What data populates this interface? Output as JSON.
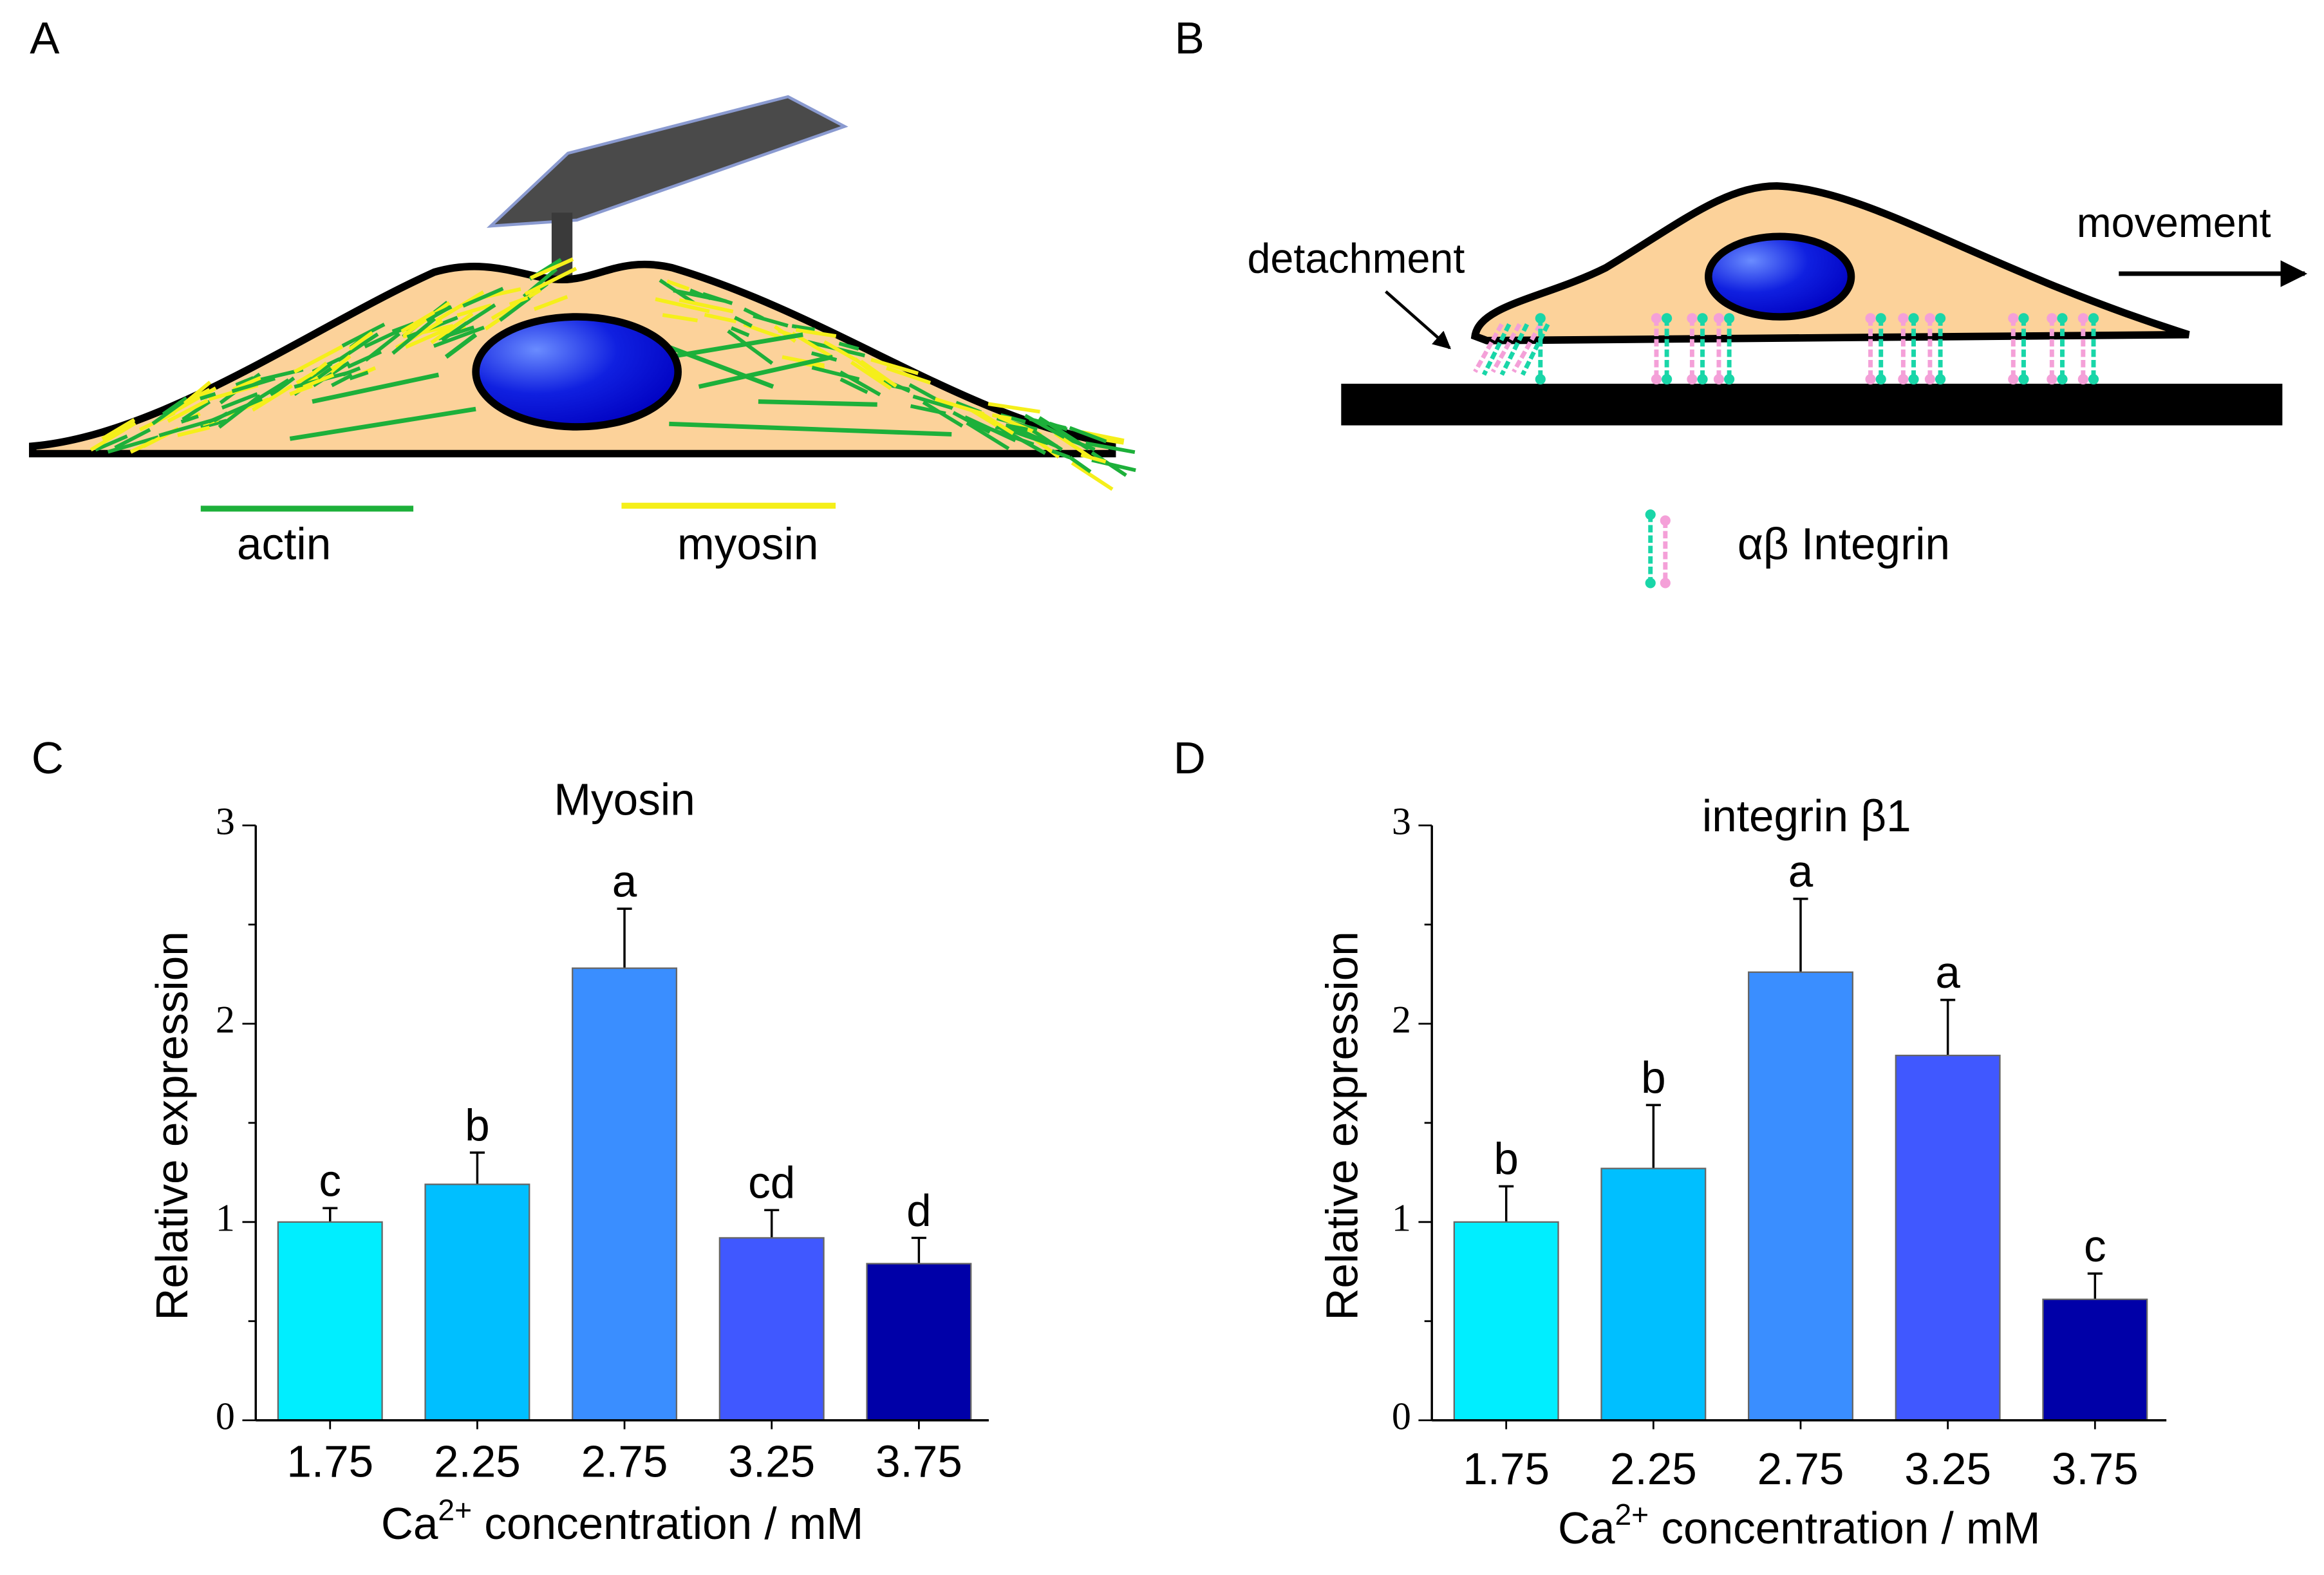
{
  "panels": {
    "labels": [
      "A",
      "B",
      "C",
      "D"
    ],
    "A": {
      "legend": [
        "actin",
        "myosin"
      ]
    },
    "B": {
      "annotations": [
        "detachment",
        "movement"
      ],
      "legend": "αβ Integrin"
    }
  },
  "chart_data": [
    {
      "type": "bar",
      "title": "Myosin",
      "y_label": "Relative expression",
      "x_label": [
        "Ca",
        "2+",
        " concentration / mM"
      ],
      "categories": [
        "1.75",
        "2.25",
        "2.75",
        "3.25",
        "3.75"
      ],
      "values": [
        1,
        1.19,
        2.28,
        0.92,
        0.79
      ],
      "errors": [
        0.07,
        0.16,
        0.3,
        0.14,
        0.13
      ],
      "annotations": [
        "c",
        "b",
        "a",
        "cd",
        "d"
      ],
      "colors": [
        "#00eeff",
        "#00bfff",
        "#3a8eff",
        "#4058ff",
        "#0000a8"
      ],
      "ylim": [
        0,
        3
      ],
      "yticks": [
        0,
        1,
        2,
        3
      ],
      "minor_yticks": [
        0.5,
        1.5,
        2.5
      ]
    },
    {
      "type": "bar",
      "title": "integrin β1",
      "y_label": "Relative expression",
      "x_label": [
        "Ca",
        "2+",
        " concentration / mM"
      ],
      "categories": [
        "1.75",
        "2.25",
        "2.75",
        "3.25",
        "3.75"
      ],
      "values": [
        1,
        1.27,
        2.26,
        1.84,
        0.61
      ],
      "errors": [
        0.18,
        0.32,
        0.37,
        0.28,
        0.13
      ],
      "annotations": [
        "b",
        "b",
        "a",
        "a",
        "c"
      ],
      "colors": [
        "#00eeff",
        "#00bfff",
        "#3a8eff",
        "#4058ff",
        "#0000a8"
      ],
      "ylim": [
        0,
        3
      ],
      "yticks": [
        0,
        1,
        2,
        3
      ],
      "minor_yticks": [
        0.5,
        1.5,
        2.5
      ]
    }
  ]
}
